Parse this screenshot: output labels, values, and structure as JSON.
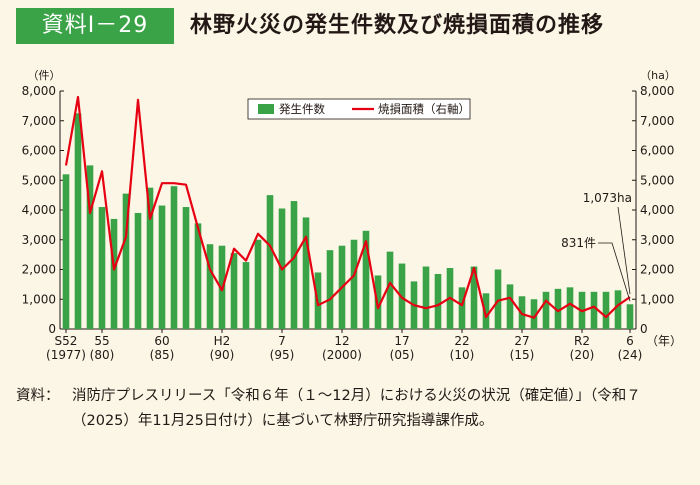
{
  "header": {
    "badge": "資料Ⅰ－29",
    "title": "林野火災の発生件数及び焼損面積の推移"
  },
  "note": {
    "prefix": "資料：",
    "text": "消防庁プレスリリース「令和６年（１～12月）における火災の状況（確定値）」（令和７（2025）年11月25日付け）に基づいて林野庁研究指導課作成。"
  },
  "chart_data": {
    "type": "bar",
    "left_unit": "（件）",
    "right_unit": "（ha）",
    "x_unit": "（年）",
    "ylim": [
      0,
      8000
    ],
    "yticks": [
      "0",
      "1,000",
      "2,000",
      "3,000",
      "4,000",
      "5,000",
      "6,000",
      "7,000",
      "8,000"
    ],
    "years": [
      1977,
      1978,
      1979,
      1980,
      1981,
      1982,
      1983,
      1984,
      1985,
      1986,
      1987,
      1988,
      1989,
      1990,
      1991,
      1992,
      1993,
      1994,
      1995,
      1996,
      1997,
      1998,
      1999,
      2000,
      2001,
      2002,
      2003,
      2004,
      2005,
      2006,
      2007,
      2008,
      2009,
      2010,
      2011,
      2012,
      2013,
      2014,
      2015,
      2016,
      2017,
      2018,
      2019,
      2020,
      2021,
      2022,
      2023,
      2024
    ],
    "xtick_labels": [
      {
        "year": 1977,
        "top": "S52",
        "bottom": "(1977)"
      },
      {
        "year": 1980,
        "top": "55",
        "bottom": "(80)"
      },
      {
        "year": 1985,
        "top": "60",
        "bottom": "(85)"
      },
      {
        "year": 1990,
        "top": "H2",
        "bottom": "(90)"
      },
      {
        "year": 1995,
        "top": "7",
        "bottom": "(95)"
      },
      {
        "year": 2000,
        "top": "12",
        "bottom": "(2000)"
      },
      {
        "year": 2005,
        "top": "17",
        "bottom": "(05)"
      },
      {
        "year": 2010,
        "top": "22",
        "bottom": "(10)"
      },
      {
        "year": 2015,
        "top": "27",
        "bottom": "(15)"
      },
      {
        "year": 2020,
        "top": "R2",
        "bottom": "(20)"
      },
      {
        "year": 2024,
        "top": "6",
        "bottom": "(24)"
      }
    ],
    "series": [
      {
        "name": "発生件数",
        "type": "bar",
        "axis": "left",
        "color": "#3aa348",
        "values": [
          5200,
          7250,
          5500,
          4100,
          3700,
          4550,
          3900,
          4750,
          4150,
          4800,
          4100,
          3550,
          2850,
          2800,
          2550,
          2250,
          3000,
          4500,
          4050,
          4300,
          3750,
          1900,
          2650,
          2800,
          3000,
          3300,
          1800,
          2600,
          2200,
          1600,
          2100,
          1850,
          2050,
          1400,
          2100,
          1200,
          2000,
          1500,
          1100,
          1000,
          1250,
          1350,
          1400,
          1250,
          1250,
          1250,
          1300,
          831
        ]
      },
      {
        "name": "焼損面積（右軸）",
        "type": "line",
        "axis": "right",
        "color": "#e60012",
        "values": [
          5500,
          7800,
          3900,
          5300,
          2000,
          3100,
          7700,
          3700,
          4900,
          4900,
          4850,
          3400,
          2000,
          1300,
          2700,
          2300,
          3200,
          2800,
          2000,
          2400,
          3100,
          800,
          1000,
          1400,
          1800,
          2950,
          700,
          1550,
          1050,
          800,
          700,
          800,
          1050,
          800,
          2050,
          400,
          950,
          1050,
          500,
          380,
          950,
          600,
          850,
          600,
          750,
          400,
          800,
          1073
        ]
      }
    ],
    "annotations": [
      {
        "text": "831件",
        "target_year": 2024,
        "target_value": 831,
        "axis": "left"
      },
      {
        "text": "1,073ha",
        "target_year": 2024,
        "target_value": 1073,
        "axis": "right"
      }
    ],
    "legend_position": "top-center",
    "grid": false
  }
}
